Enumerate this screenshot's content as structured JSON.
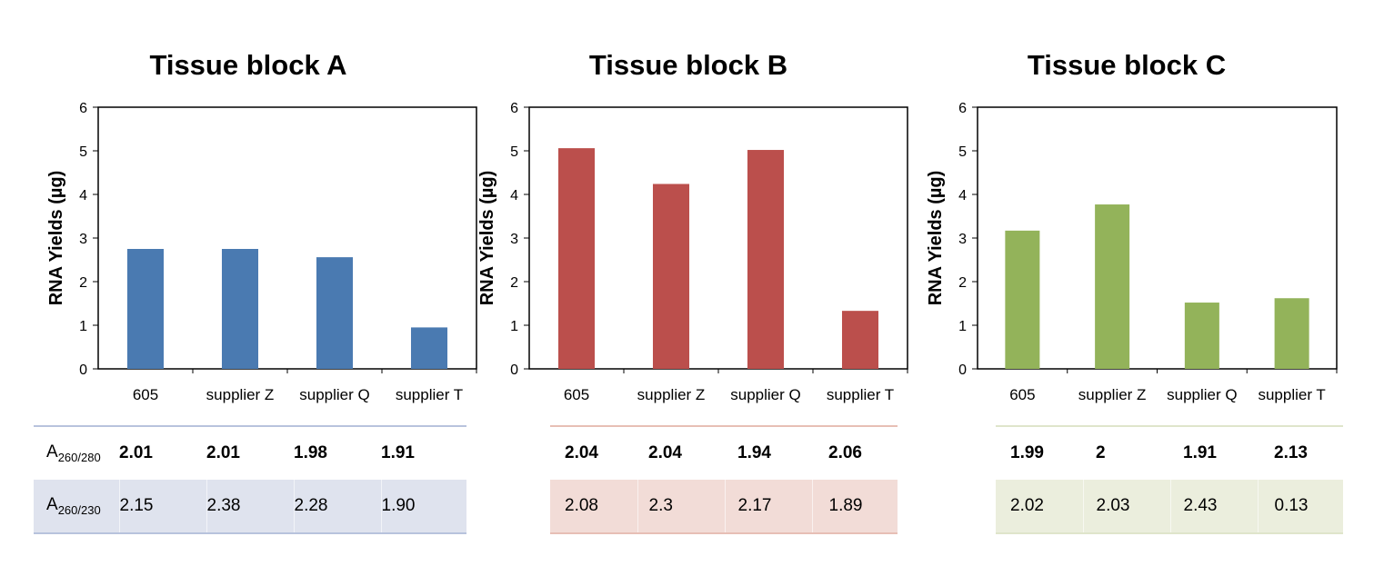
{
  "labels": {
    "a260_280_main": "A",
    "a260_280_sub": "260/280",
    "a260_230_main": "A",
    "a260_230_sub": "260/230"
  },
  "chart_data": [
    {
      "type": "bar",
      "title": "Tissue block A",
      "ylabel": "RNA Yields (µg)",
      "xlabel": "",
      "ylim": [
        0,
        6
      ],
      "yticks": [
        "0",
        "1",
        "2",
        "3",
        "4",
        "5",
        "6"
      ],
      "categories": [
        "605",
        "supplier Z",
        "supplier Q",
        "supplier T"
      ],
      "values": [
        2.75,
        2.75,
        2.56,
        0.95
      ],
      "color": "#4a7ab1",
      "a260_280": [
        "2.01",
        "2.01",
        "1.98",
        "1.91"
      ],
      "a260_230": [
        "2.15",
        "2.38",
        "2.28",
        "1.90"
      ],
      "table_fill": "#dfe3ee",
      "table_border": "#b8c3dd"
    },
    {
      "type": "bar",
      "title": "Tissue block B",
      "ylabel": "RNA Yields (µg)",
      "xlabel": "",
      "ylim": [
        0,
        6
      ],
      "yticks": [
        "0",
        "1",
        "2",
        "3",
        "4",
        "5",
        "6"
      ],
      "categories": [
        "605",
        "supplier Z",
        "supplier Q",
        "supplier T"
      ],
      "values": [
        5.06,
        4.24,
        5.02,
        1.33
      ],
      "color": "#bb4f4c",
      "a260_280": [
        "2.04",
        "2.04",
        "1.94",
        "2.06"
      ],
      "a260_230": [
        "2.08",
        "2.3",
        "2.17",
        "1.89"
      ],
      "table_fill": "#f2dcd7",
      "table_border": "#e7bfb5"
    },
    {
      "type": "bar",
      "title": "Tissue block C",
      "ylabel": "RNA Yields (µg)",
      "xlabel": "",
      "ylim": [
        0,
        6
      ],
      "yticks": [
        "0",
        "1",
        "2",
        "3",
        "4",
        "5",
        "6"
      ],
      "categories": [
        "605",
        "supplier Z",
        "supplier Q",
        "supplier T"
      ],
      "values": [
        3.17,
        3.77,
        1.52,
        1.62
      ],
      "color": "#93b35a",
      "a260_280": [
        "1.99",
        "2",
        "1.91",
        "2.13"
      ],
      "a260_230": [
        "2.02",
        "2.03",
        "2.43",
        "0.13"
      ],
      "table_fill": "#ebeedd",
      "table_border": "#dfe5cb"
    }
  ]
}
